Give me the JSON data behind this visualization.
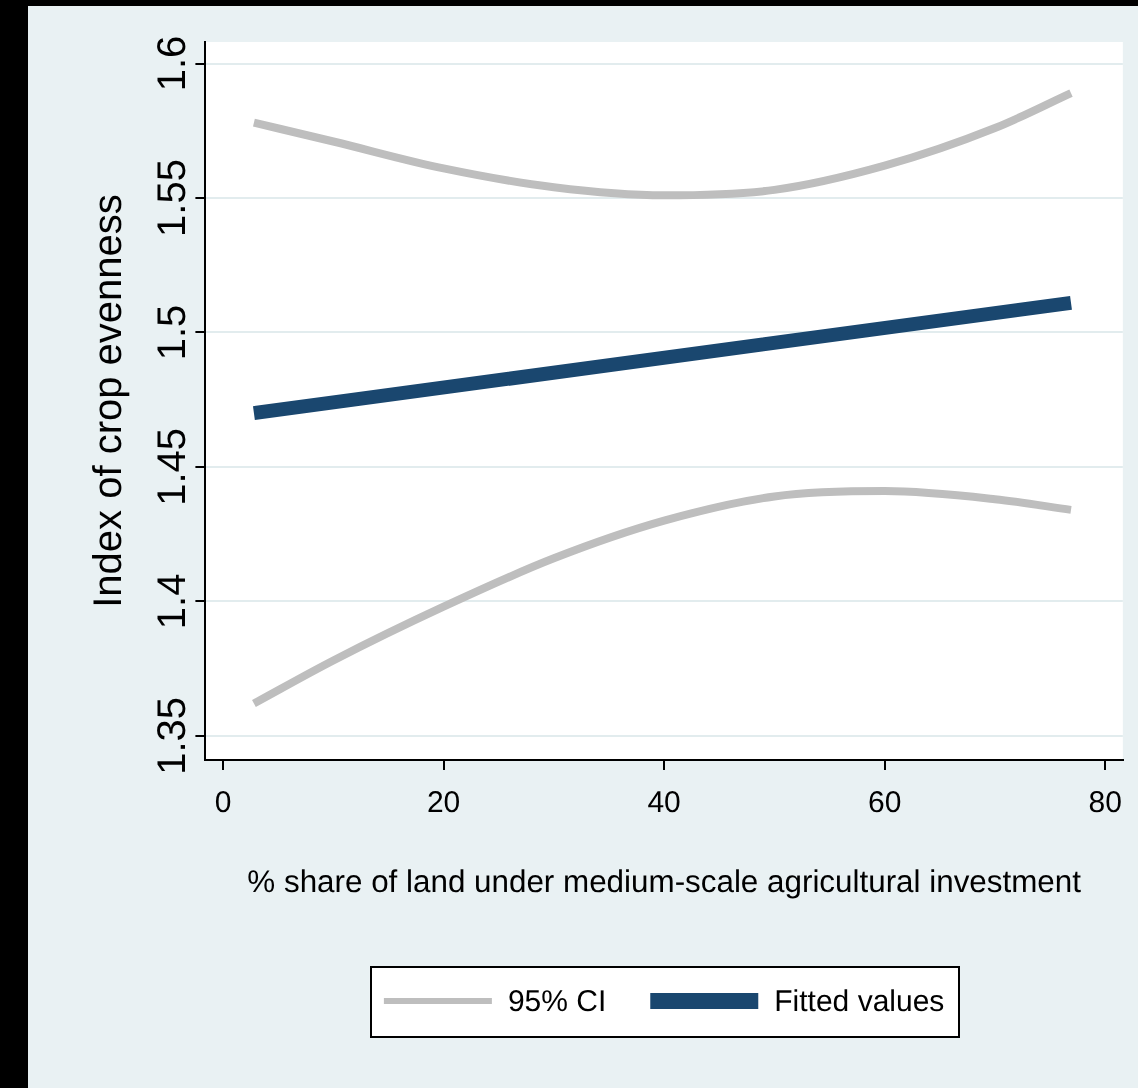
{
  "chart_data": {
    "type": "line",
    "xlabel": "% share of land under medium-scale agricultural investment",
    "ylabel": "Index of crop evenness",
    "xlim": [
      -1.6,
      81.6
    ],
    "xticks": [
      0,
      20,
      40,
      60,
      80
    ],
    "ylim": [
      1.341,
      1.608
    ],
    "yticks": [
      1.35,
      1.4,
      1.45,
      1.5,
      1.55,
      1.6
    ],
    "grid": "y",
    "legend": "bottom",
    "marker": "none",
    "series": [
      {
        "name": "95% CI",
        "color": "#bebebe",
        "x": [
          2.8,
          10,
          20,
          30,
          40,
          50,
          60,
          70,
          76.9
        ],
        "values": [
          1.578,
          1.571,
          1.561,
          1.554,
          1.551,
          1.553,
          1.562,
          1.576,
          1.589
        ]
      },
      {
        "color": "#bebebe",
        "x": [
          2.8,
          10,
          20,
          30,
          40,
          50,
          60,
          70,
          76.9
        ],
        "values": [
          1.362,
          1.378,
          1.398,
          1.416,
          1.43,
          1.439,
          1.441,
          1.438,
          1.434
        ]
      },
      {
        "name": "Fitted values",
        "color": "#1a476f",
        "x": [
          2.8,
          76.9
        ],
        "values": [
          1.47,
          1.511
        ]
      }
    ]
  }
}
